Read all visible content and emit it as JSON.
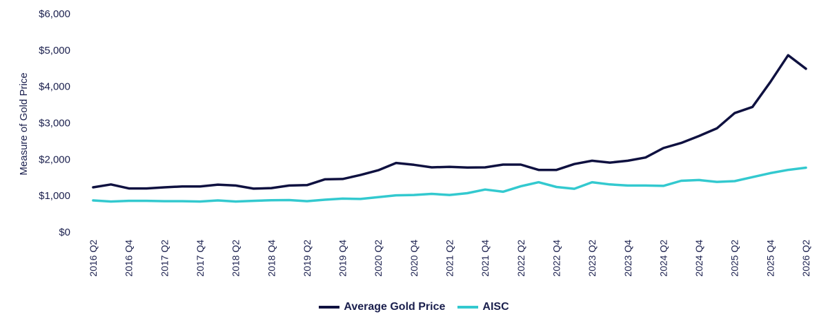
{
  "chart_data": {
    "type": "line",
    "title": "",
    "xlabel": "",
    "ylabel": "Measure of Gold Price",
    "ylim": [
      0,
      6000
    ],
    "yticks": [
      "$0",
      "$1,000",
      "$2,000",
      "$3,000",
      "$4,000",
      "$5,000",
      "$6,000"
    ],
    "ytick_values": [
      0,
      1000,
      2000,
      3000,
      4000,
      5000,
      6000
    ],
    "categories": [
      "2016 Q2",
      "2016 Q3",
      "2016 Q4",
      "2017 Q1",
      "2017 Q2",
      "2017 Q3",
      "2017 Q4",
      "2018 Q1",
      "2018 Q2",
      "2018 Q3",
      "2018 Q4",
      "2019 Q1",
      "2019 Q2",
      "2019 Q3",
      "2019 Q4",
      "2020 Q1",
      "2020 Q2",
      "2020 Q3",
      "2020 Q4",
      "2021 Q1",
      "2021 Q2",
      "2021 Q3",
      "2021 Q4",
      "2022 Q1",
      "2022 Q2",
      "2022 Q3",
      "2022 Q4",
      "2023 Q1",
      "2023 Q2",
      "2023 Q3",
      "2023 Q4",
      "2024 Q1",
      "2024 Q2",
      "2024 Q3",
      "2024 Q4",
      "2025 Q1",
      "2025 Q2",
      "2025 Q3",
      "2025 Q4",
      "2026 Q1",
      "2026 Q2"
    ],
    "xtick_labels": [
      "2016 Q2",
      "2016 Q4",
      "2017 Q2",
      "2017 Q4",
      "2018 Q2",
      "2018 Q4",
      "2019 Q2",
      "2019 Q4",
      "2020 Q2",
      "2020 Q4",
      "2021 Q2",
      "2021 Q4",
      "2022 Q2",
      "2022 Q4",
      "2023 Q2",
      "2023 Q4",
      "2024 Q2",
      "2024 Q4",
      "2025 Q2",
      "2025 Q4",
      "2026 Q2"
    ],
    "series": [
      {
        "name": "Average Gold Price",
        "color": "#0f1140",
        "values": [
          1230,
          1310,
          1200,
          1200,
          1230,
          1255,
          1255,
          1305,
          1280,
          1195,
          1210,
          1280,
          1290,
          1450,
          1460,
          1570,
          1700,
          1900,
          1850,
          1780,
          1795,
          1775,
          1780,
          1855,
          1855,
          1710,
          1710,
          1870,
          1960,
          1910,
          1960,
          2050,
          2310,
          2450,
          2640,
          2850,
          3270,
          3440,
          4120,
          4860,
          4490
        ]
      },
      {
        "name": "AISC",
        "color": "#33c9cf",
        "values": [
          870,
          840,
          860,
          860,
          850,
          850,
          840,
          870,
          840,
          860,
          875,
          880,
          850,
          890,
          920,
          910,
          960,
          1010,
          1020,
          1050,
          1020,
          1070,
          1170,
          1110,
          1260,
          1370,
          1240,
          1190,
          1370,
          1310,
          1280,
          1280,
          1270,
          1410,
          1430,
          1380,
          1400,
          1510,
          1620,
          1710,
          1770
        ]
      }
    ],
    "grid": false,
    "legend_position": "bottom-center"
  }
}
